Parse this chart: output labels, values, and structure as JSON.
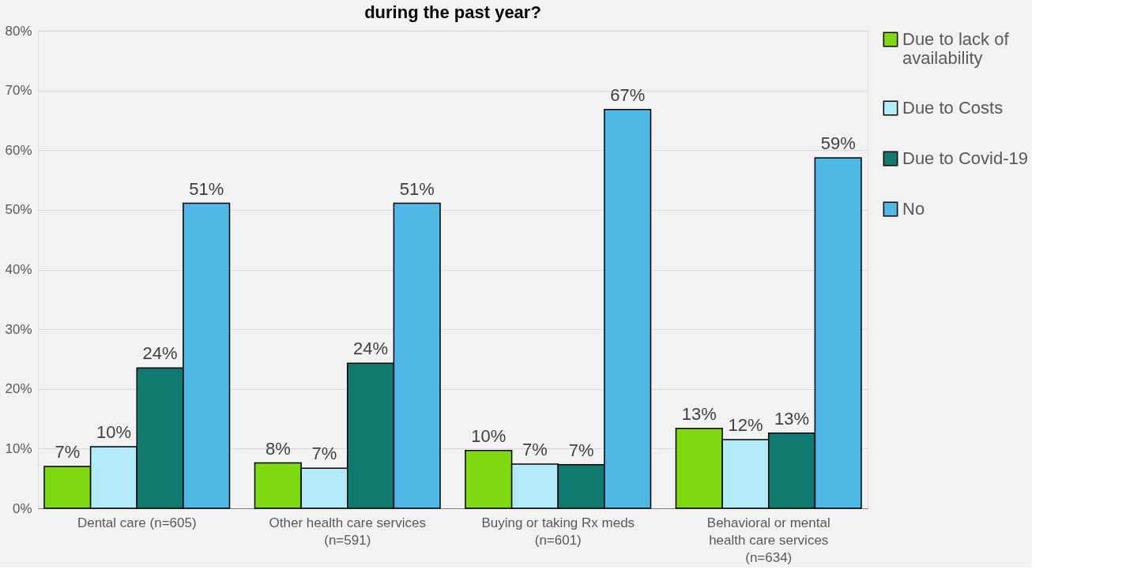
{
  "chart_data": {
    "type": "bar",
    "title": "during the past year?",
    "categories": [
      "Dental care (n=605)",
      "Other health care services\n(n=591)",
      "Buying or taking Rx meds\n(n=601)",
      "Behavioral or mental\nhealth care services\n(n=634)"
    ],
    "series": [
      {
        "name": "Due to lack of\navailability",
        "color": "#7fd90f",
        "values": [
          7.0,
          7.6,
          9.7,
          13.4
        ],
        "value_labels": [
          "7%",
          "8%",
          "10%",
          "13%"
        ]
      },
      {
        "name": "Due to Costs",
        "color": "#b3ebfb",
        "values": [
          10.3,
          6.7,
          7.4,
          11.5
        ],
        "value_labels": [
          "10%",
          "7%",
          "7%",
          "12%"
        ]
      },
      {
        "name": "Due to Covid-19",
        "color": "#0f7a70",
        "values": [
          23.5,
          24.3,
          7.3,
          12.6
        ],
        "value_labels": [
          "24%",
          "24%",
          "7%",
          "13%"
        ]
      },
      {
        "name": "No",
        "color": "#4fb8e6",
        "values": [
          51.1,
          51.1,
          66.8,
          58.7
        ],
        "value_labels": [
          "51%",
          "51%",
          "67%",
          "59%"
        ]
      }
    ],
    "ylim": [
      0,
      80
    ],
    "yticks": [
      {
        "value": 0,
        "label": "0%"
      },
      {
        "value": 10,
        "label": "10%"
      },
      {
        "value": 20,
        "label": "20%"
      },
      {
        "value": 30,
        "label": "30%"
      },
      {
        "value": 40,
        "label": "40%"
      },
      {
        "value": 50,
        "label": "50%"
      },
      {
        "value": 60,
        "label": "60%"
      },
      {
        "value": 70,
        "label": "70%"
      },
      {
        "value": 80,
        "label": "80%"
      }
    ],
    "grid": "y",
    "legend": "right"
  }
}
